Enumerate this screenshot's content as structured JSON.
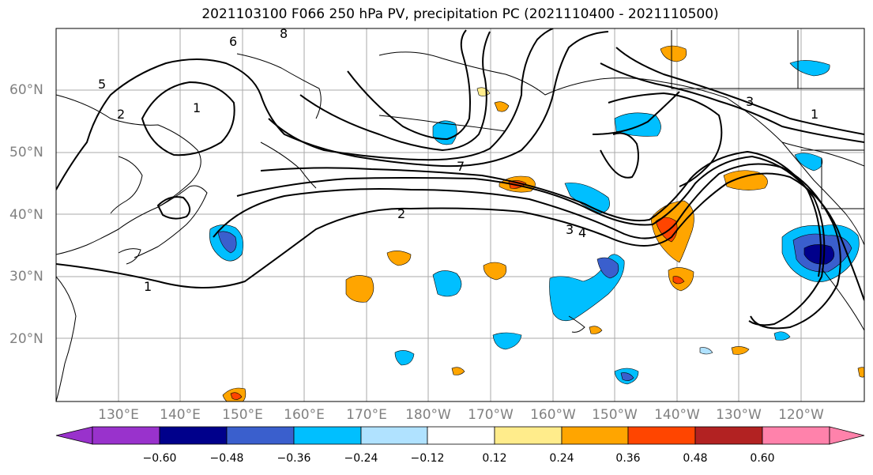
{
  "title": "2021103100 F066 250 hPa PV, precipitation PC (2021110400 - 2021110500)",
  "lat_labels": [
    "60°N",
    "50°N",
    "40°N",
    "30°N",
    "20°N"
  ],
  "lon_labels": [
    "130°E",
    "140°E",
    "150°E",
    "160°E",
    "170°E",
    "180°W",
    "170°W",
    "160°W",
    "150°W",
    "140°W",
    "130°W",
    "120°W"
  ],
  "colorbar": {
    "ticks": [
      "−0.60",
      "−0.48",
      "−0.36",
      "−0.24",
      "−0.12",
      "0.12",
      "0.24",
      "0.36",
      "0.48",
      "0.60"
    ],
    "colors": [
      "#9932cc",
      "#00008b",
      "#3a5fcd",
      "#00bfff",
      "#b0e2ff",
      "#ffffff",
      "#ffec8b",
      "#ffa500",
      "#ff4500",
      "#b22222",
      "#ff82ab"
    ]
  },
  "contour_labels": [
    "1",
    "2",
    "3",
    "4",
    "5",
    "6",
    "7",
    "8"
  ],
  "palette": {
    "grid": "#aaaaaa",
    "axis_text": "#808080",
    "contour": "#000000"
  }
}
